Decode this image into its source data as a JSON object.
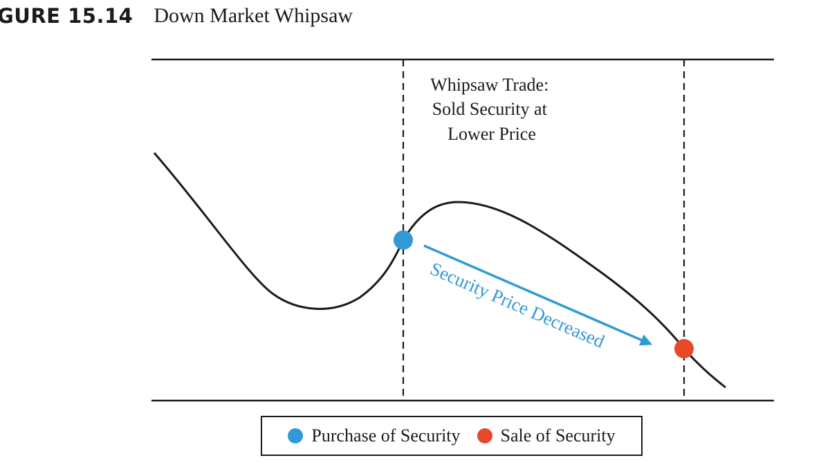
{
  "figure": {
    "label": "GURE 15.14",
    "caption": "Down Market Whipsaw"
  },
  "annotation": {
    "lines": [
      "Whipsaw Trade:",
      "Sold Security at",
      "Lower Price"
    ]
  },
  "arrow_label": "Security Price Decreased",
  "legend": {
    "items": [
      {
        "label": "Purchase of Security",
        "color": "#3399d6"
      },
      {
        "label": "Sale of Security",
        "color": "#e8482a"
      }
    ]
  },
  "colors": {
    "curve": "#1a1a1a",
    "frame": "#1a1a1a",
    "purchase": "#3399d6",
    "sale": "#e8482a",
    "arrow": "#3399d6"
  }
}
